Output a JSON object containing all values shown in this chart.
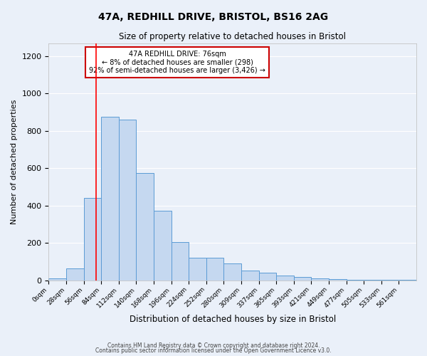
{
  "title": "47A, REDHILL DRIVE, BRISTOL, BS16 2AG",
  "subtitle": "Size of property relative to detached houses in Bristol",
  "xlabel": "Distribution of detached houses by size in Bristol",
  "ylabel": "Number of detached properties",
  "bar_values": [
    10,
    65,
    440,
    875,
    860,
    575,
    375,
    205,
    120,
    120,
    90,
    55,
    40,
    25,
    18,
    10,
    8,
    5,
    5,
    5,
    5
  ],
  "bar_labels": [
    "0sqm",
    "28sqm",
    "56sqm",
    "84sqm",
    "112sqm",
    "140sqm",
    "168sqm",
    "196sqm",
    "224sqm",
    "252sqm",
    "280sqm",
    "309sqm",
    "337sqm",
    "365sqm",
    "393sqm",
    "421sqm",
    "449sqm",
    "477sqm",
    "505sqm",
    "533sqm",
    "561sqm"
  ],
  "bar_color": "#c5d8f0",
  "bar_edge_color": "#5b9bd5",
  "bg_color": "#eaf0f9",
  "plot_bg_color": "#eaf0f9",
  "grid_color": "#ffffff",
  "annotation_text": "47A REDHILL DRIVE: 76sqm\n← 8% of detached houses are smaller (298)\n92% of semi-detached houses are larger (3,426) →",
  "annotation_box_color": "#ffffff",
  "annotation_box_edge": "#cc0000",
  "ylim": [
    0,
    1270
  ],
  "yticks": [
    0,
    200,
    400,
    600,
    800,
    1000,
    1200
  ],
  "red_line_bin": 2.714,
  "footnote1": "Contains HM Land Registry data © Crown copyright and database right 2024.",
  "footnote2": "Contains public sector information licensed under the Open Government Licence v3.0."
}
